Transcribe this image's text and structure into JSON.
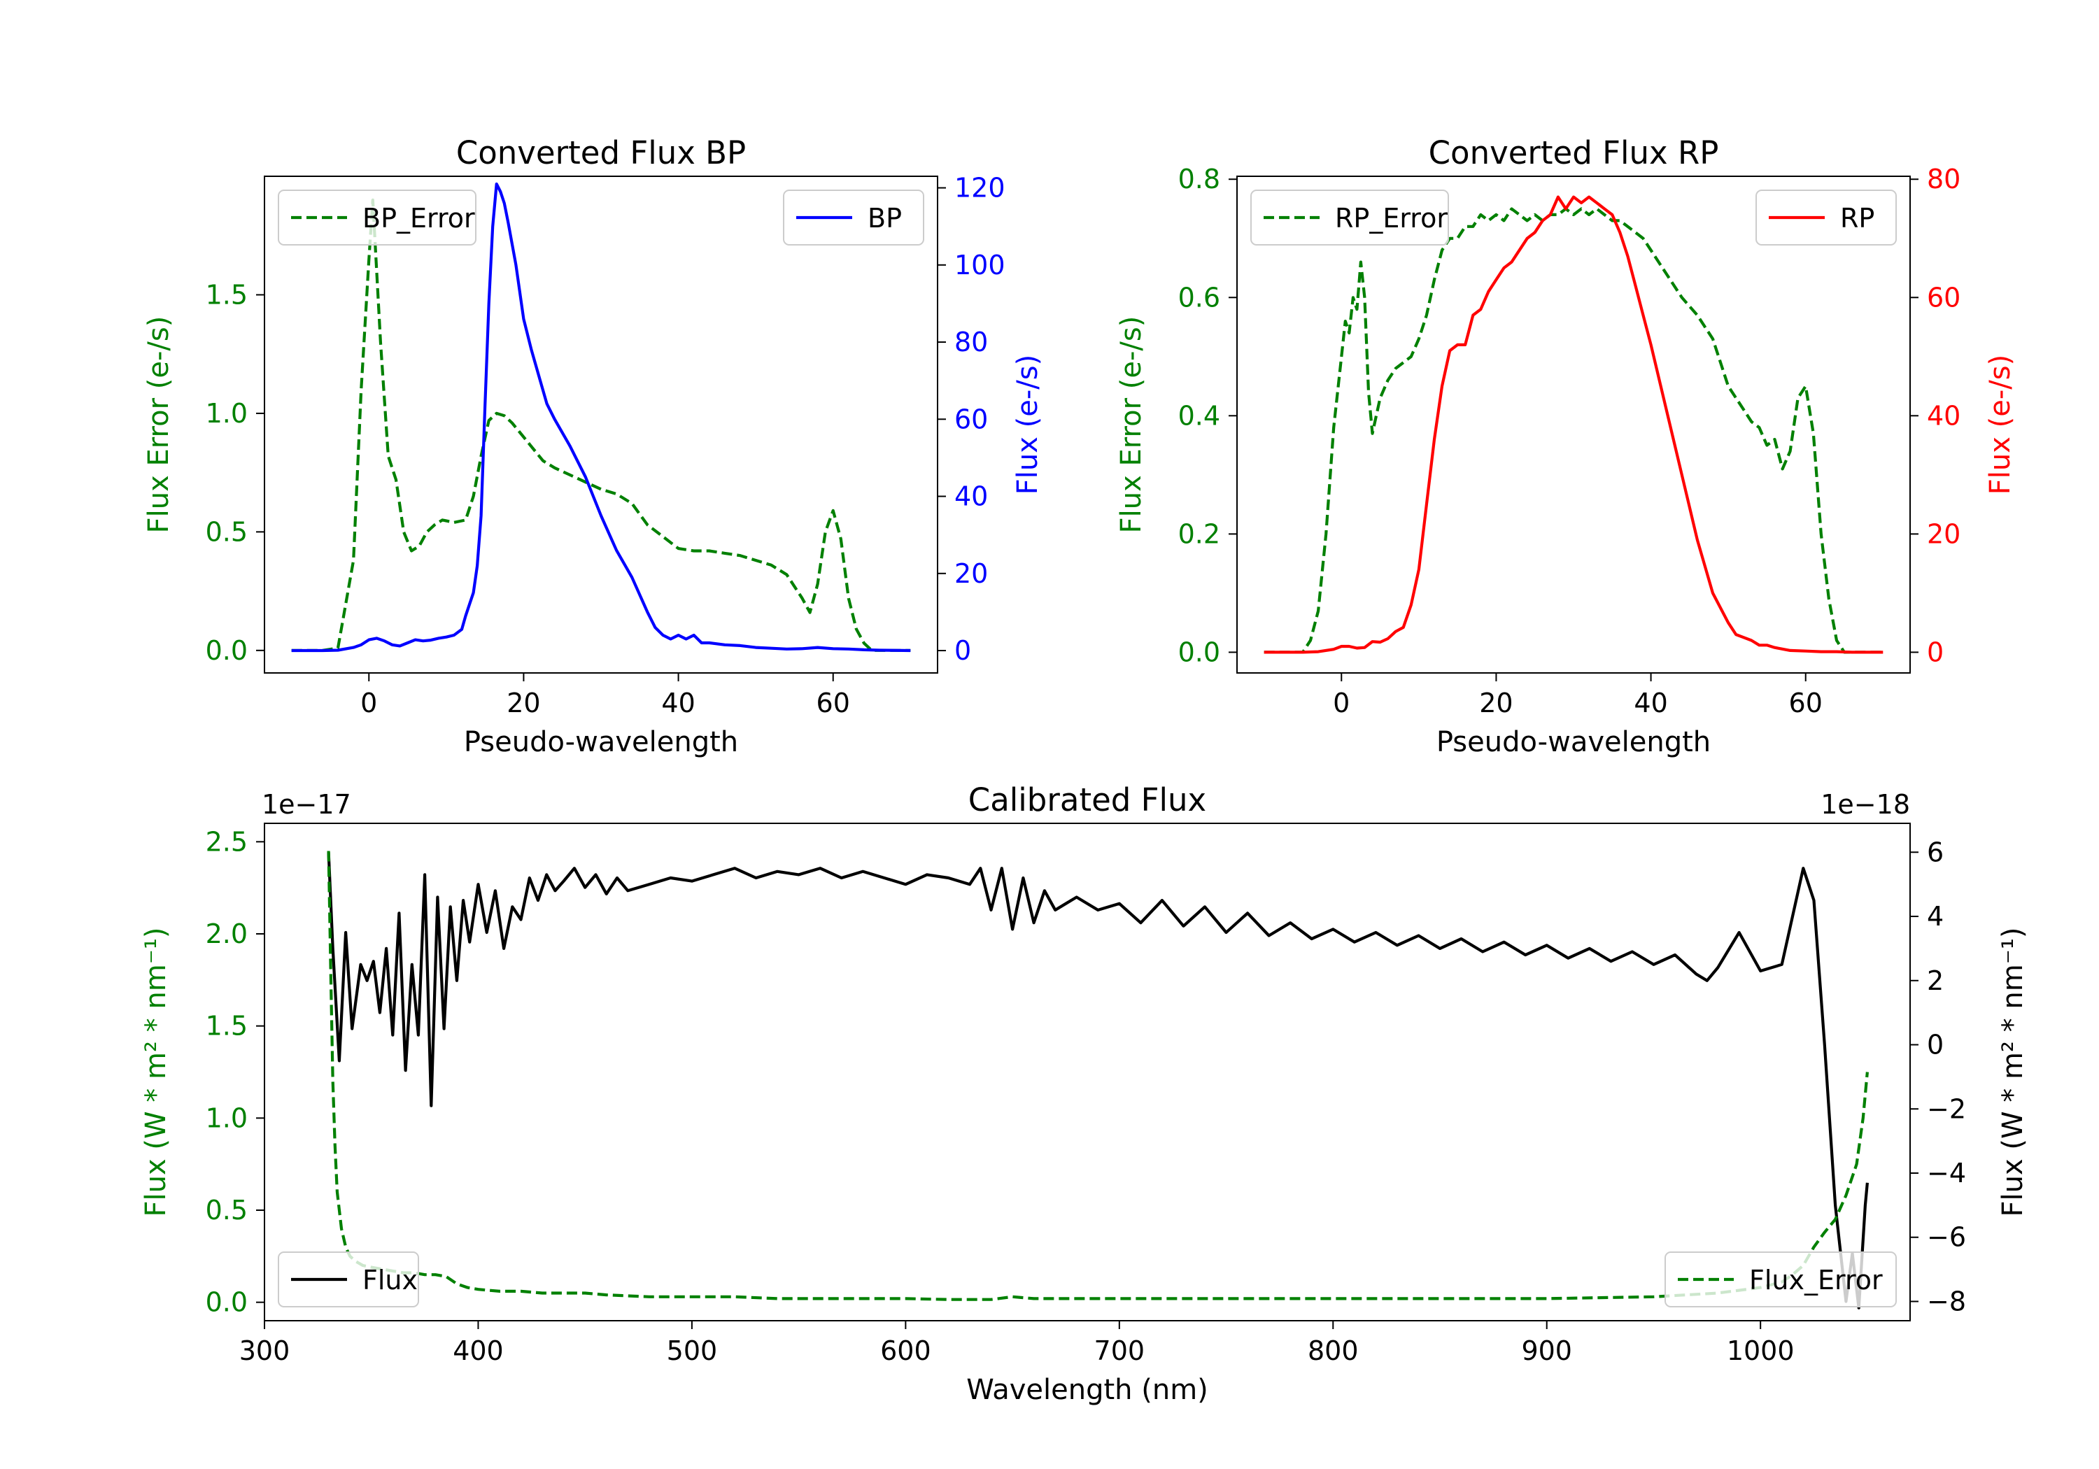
{
  "colors": {
    "error": "#008000",
    "bp": "#0000ff",
    "rp": "#ff0000",
    "flux": "#000000",
    "axis": "#000000"
  },
  "chart_data": [
    {
      "type": "line",
      "title": "Converted Flux BP",
      "xlabel": "Pseudo-wavelength",
      "ylabel_left": "Flux Error (e-/s)",
      "ylabel_right": "Flux (e-/s)",
      "xlim": [
        -13.5,
        73.5
      ],
      "ylim_left": [
        -0.095,
        2.0
      ],
      "ylim_right": [
        -5.8,
        123
      ],
      "xticks": [
        0,
        20,
        40,
        60
      ],
      "yticks_left": [
        0.0,
        0.5,
        1.0,
        1.5
      ],
      "yticks_right": [
        0,
        20,
        40,
        60,
        80,
        100,
        120
      ],
      "legend_left": {
        "label": "BP_Error",
        "position": "upper left"
      },
      "legend_right": {
        "label": "BP",
        "position": "upper right"
      },
      "series": [
        {
          "name": "BP_Error",
          "axis": "left",
          "style": "dashed",
          "x": [
            -10,
            -6,
            -4,
            -2,
            -1,
            0,
            0.5,
            1.5,
            2.5,
            3.5,
            4.5,
            5.5,
            6.5,
            7.5,
            8.5,
            9.5,
            11,
            12.5,
            13.5,
            14.5,
            15.5,
            16.5,
            17.5,
            18.5,
            19.5,
            20.5,
            21.5,
            22.5,
            24,
            26,
            28,
            30,
            32,
            34,
            36,
            38,
            40,
            42,
            44,
            46,
            48,
            50,
            52,
            54,
            55,
            56,
            57,
            58,
            59,
            60,
            61,
            62,
            63,
            64,
            65,
            66,
            68,
            70
          ],
          "y": [
            0,
            0,
            0.01,
            0.38,
            1.1,
            1.65,
            1.9,
            1.3,
            0.82,
            0.72,
            0.5,
            0.42,
            0.44,
            0.5,
            0.53,
            0.55,
            0.54,
            0.55,
            0.65,
            0.82,
            0.97,
            1.0,
            0.99,
            0.96,
            0.92,
            0.88,
            0.84,
            0.8,
            0.77,
            0.74,
            0.71,
            0.68,
            0.66,
            0.62,
            0.53,
            0.48,
            0.43,
            0.42,
            0.42,
            0.41,
            0.4,
            0.38,
            0.36,
            0.32,
            0.27,
            0.22,
            0.16,
            0.28,
            0.5,
            0.59,
            0.47,
            0.22,
            0.09,
            0.03,
            0.0,
            0.0,
            0.0,
            0.0
          ]
        },
        {
          "name": "BP",
          "axis": "right",
          "style": "solid",
          "x": [
            -10,
            -6,
            -4,
            -2,
            -1,
            0,
            1,
            2,
            3,
            4,
            5,
            6,
            7,
            8,
            9,
            10,
            11,
            12,
            12.5,
            13,
            13.5,
            14,
            14.5,
            15,
            15.5,
            16,
            16.5,
            17,
            17.5,
            18,
            19,
            20,
            21,
            22,
            23,
            24,
            26,
            28,
            30,
            32,
            34,
            36,
            37,
            38,
            39,
            40,
            41,
            42,
            43,
            44,
            46,
            48,
            50,
            52,
            54,
            56,
            58,
            60,
            62,
            64,
            66,
            70
          ],
          "y": [
            0,
            0,
            0.1,
            0.8,
            1.5,
            2.8,
            3.2,
            2.5,
            1.5,
            1.2,
            2.0,
            2.8,
            2.5,
            2.7,
            3.2,
            3.5,
            4.0,
            5.5,
            9,
            12,
            15,
            22,
            35,
            63,
            90,
            110,
            121,
            119,
            116,
            111,
            100,
            86,
            78,
            71,
            64,
            60,
            53,
            45,
            35,
            26,
            19,
            10,
            6,
            4,
            3,
            4,
            3,
            4,
            2,
            2,
            1.5,
            1.3,
            0.8,
            0.6,
            0.4,
            0.5,
            0.8,
            0.5,
            0.4,
            0.2,
            0.1,
            0.0
          ]
        }
      ]
    },
    {
      "type": "line",
      "title": "Converted Flux RP",
      "xlabel": "Pseudo-wavelength",
      "ylabel_left": "Flux Error (e-/s)",
      "ylabel_right": "Flux (e-/s)",
      "xlim": [
        -13.5,
        73.5
      ],
      "ylim_left": [
        -0.035,
        0.805
      ],
      "ylim_right": [
        -3.5,
        80.5
      ],
      "xticks": [
        0,
        20,
        40,
        60
      ],
      "yticks_left": [
        0.0,
        0.2,
        0.4,
        0.6,
        0.8
      ],
      "yticks_right": [
        0,
        20,
        40,
        60,
        80
      ],
      "legend_left": {
        "label": "RP_Error",
        "position": "upper left"
      },
      "legend_right": {
        "label": "RP",
        "position": "upper right"
      },
      "series": [
        {
          "name": "RP_Error",
          "axis": "left",
          "style": "dashed",
          "x": [
            -10,
            -5,
            -4,
            -3,
            -2,
            -1,
            0,
            0.5,
            1,
            1.5,
            2,
            2.5,
            3,
            3.5,
            4,
            4.5,
            5,
            6,
            7,
            8,
            9,
            10,
            11,
            12,
            13,
            14,
            15,
            16,
            17,
            18,
            19,
            20,
            21,
            22,
            23,
            24,
            25,
            26,
            27,
            28,
            29,
            30,
            31,
            32,
            33,
            34,
            35,
            36,
            37,
            38,
            39,
            40,
            42,
            44,
            46,
            48,
            50,
            52,
            53,
            54,
            55,
            56,
            57,
            58,
            59,
            60,
            61,
            62,
            63,
            64,
            65,
            66,
            68,
            70
          ],
          "y": [
            0,
            0,
            0.02,
            0.07,
            0.2,
            0.38,
            0.5,
            0.56,
            0.54,
            0.6,
            0.58,
            0.66,
            0.6,
            0.44,
            0.37,
            0.4,
            0.43,
            0.46,
            0.48,
            0.49,
            0.5,
            0.53,
            0.57,
            0.63,
            0.68,
            0.7,
            0.7,
            0.72,
            0.72,
            0.74,
            0.73,
            0.74,
            0.73,
            0.75,
            0.74,
            0.73,
            0.74,
            0.73,
            0.74,
            0.74,
            0.75,
            0.74,
            0.75,
            0.74,
            0.75,
            0.74,
            0.73,
            0.73,
            0.72,
            0.71,
            0.7,
            0.68,
            0.64,
            0.6,
            0.57,
            0.53,
            0.45,
            0.41,
            0.39,
            0.38,
            0.35,
            0.36,
            0.31,
            0.34,
            0.43,
            0.45,
            0.37,
            0.2,
            0.09,
            0.02,
            0.0,
            0.0,
            0.0,
            0.0
          ]
        },
        {
          "name": "RP",
          "axis": "right",
          "style": "solid",
          "x": [
            -10,
            -5,
            -3,
            -1,
            0,
            1,
            2,
            3,
            4,
            5,
            6,
            7,
            8,
            9,
            10,
            11,
            12,
            13,
            14,
            15,
            16,
            17,
            18,
            19,
            20,
            21,
            22,
            23,
            24,
            25,
            26,
            27,
            28,
            29,
            30,
            31,
            32,
            33,
            34,
            35,
            36,
            37,
            38,
            39,
            40,
            42,
            44,
            46,
            48,
            50,
            51,
            52,
            53,
            54,
            55,
            56,
            58,
            60,
            62,
            64,
            66,
            70
          ],
          "y": [
            0,
            0,
            0.1,
            0.5,
            1.0,
            1.0,
            0.7,
            0.8,
            1.8,
            1.7,
            2.3,
            3.5,
            4.2,
            8,
            14,
            25,
            36,
            45,
            51,
            52,
            52,
            57,
            58,
            61,
            63,
            65,
            66,
            68,
            70,
            71,
            73,
            74,
            77,
            75,
            77,
            76,
            77,
            76,
            75,
            74,
            71,
            67,
            62,
            57,
            52,
            41,
            30,
            19,
            10,
            5,
            3,
            2.5,
            2,
            1.2,
            1.2,
            0.8,
            0.3,
            0.2,
            0.1,
            0.1,
            0.0,
            0.0
          ]
        }
      ]
    },
    {
      "type": "line",
      "title": "Calibrated Flux",
      "xlabel": "Wavelength (nm)",
      "ylabel_left": "Flux (W * m² * nm⁻¹)",
      "ylabel_right": "Flux (W * m² * nm⁻¹)",
      "offset_left": "1e−17",
      "offset_right": "1e−18",
      "xlim": [
        300,
        1070
      ],
      "ylim_left": [
        -0.1,
        2.6
      ],
      "ylim_right": [
        -8.6,
        6.9
      ],
      "xticks": [
        300,
        400,
        500,
        600,
        700,
        800,
        900,
        1000
      ],
      "yticks_left": [
        0.0,
        0.5,
        1.0,
        1.5,
        2.0,
        2.5
      ],
      "yticks_right": [
        -8,
        -6,
        -4,
        -2,
        0,
        2,
        4,
        6
      ],
      "legend_left": {
        "label": "Flux",
        "position": "lower left"
      },
      "legend_right": {
        "label": "Flux_Error",
        "position": "lower right"
      },
      "series": [
        {
          "name": "Flux",
          "axis": "right",
          "style": "solid",
          "x": [
            330,
            332,
            335,
            338,
            341,
            345,
            348,
            351,
            354,
            357,
            360,
            363,
            366,
            369,
            372,
            375,
            378,
            381,
            384,
            387,
            390,
            393,
            396,
            400,
            404,
            408,
            412,
            416,
            420,
            424,
            428,
            432,
            436,
            440,
            445,
            450,
            455,
            460,
            465,
            470,
            480,
            490,
            500,
            510,
            520,
            530,
            540,
            550,
            560,
            570,
            580,
            590,
            600,
            610,
            620,
            630,
            635,
            640,
            645,
            650,
            655,
            660,
            665,
            670,
            680,
            690,
            700,
            710,
            720,
            730,
            740,
            750,
            760,
            770,
            780,
            790,
            800,
            810,
            820,
            830,
            840,
            850,
            860,
            870,
            880,
            890,
            900,
            910,
            920,
            930,
            940,
            950,
            960,
            970,
            975,
            980,
            990,
            1000,
            1010,
            1015,
            1020,
            1025,
            1030,
            1035,
            1040,
            1043,
            1046,
            1049,
            1050
          ],
          "y": [
            6.0,
            3.0,
            -0.5,
            3.5,
            0.5,
            2.5,
            2.0,
            2.6,
            1.0,
            3.0,
            0.3,
            4.1,
            -0.8,
            2.5,
            0.3,
            5.3,
            -1.9,
            4.6,
            0.5,
            4.3,
            2.0,
            4.5,
            3.2,
            5.0,
            3.5,
            4.8,
            3.0,
            4.3,
            3.9,
            5.2,
            4.5,
            5.3,
            4.8,
            5.1,
            5.5,
            4.9,
            5.3,
            4.7,
            5.2,
            4.8,
            5.0,
            5.2,
            5.1,
            5.3,
            5.5,
            5.2,
            5.4,
            5.3,
            5.5,
            5.2,
            5.4,
            5.2,
            5.0,
            5.3,
            5.2,
            5.0,
            5.5,
            4.2,
            5.5,
            3.6,
            5.2,
            3.8,
            4.8,
            4.2,
            4.6,
            4.2,
            4.4,
            3.8,
            4.5,
            3.7,
            4.3,
            3.5,
            4.1,
            3.4,
            3.8,
            3.3,
            3.6,
            3.2,
            3.5,
            3.1,
            3.4,
            3.0,
            3.3,
            2.9,
            3.2,
            2.8,
            3.1,
            2.7,
            3.0,
            2.6,
            2.9,
            2.5,
            2.8,
            2.2,
            2.0,
            2.4,
            3.5,
            2.3,
            2.5,
            4.0,
            5.5,
            4.5,
            0.0,
            -5.0,
            -8.0,
            -6.5,
            -8.2,
            -5.0,
            -4.3
          ]
        },
        {
          "name": "Flux_Error",
          "axis": "left",
          "style": "dashed",
          "x": [
            330,
            331,
            332,
            333,
            334,
            336,
            338,
            340,
            343,
            346,
            350,
            355,
            360,
            365,
            370,
            375,
            380,
            385,
            390,
            395,
            400,
            410,
            420,
            430,
            440,
            450,
            460,
            480,
            500,
            520,
            540,
            560,
            580,
            600,
            620,
            640,
            650,
            660,
            700,
            750,
            800,
            850,
            900,
            950,
            980,
            1000,
            1010,
            1015,
            1020,
            1025,
            1030,
            1035,
            1040,
            1045,
            1048,
            1050
          ],
          "y": [
            2.45,
            1.8,
            1.2,
            0.85,
            0.6,
            0.4,
            0.3,
            0.25,
            0.22,
            0.2,
            0.19,
            0.18,
            0.17,
            0.16,
            0.16,
            0.15,
            0.15,
            0.14,
            0.1,
            0.08,
            0.07,
            0.06,
            0.06,
            0.05,
            0.05,
            0.05,
            0.04,
            0.03,
            0.03,
            0.03,
            0.02,
            0.02,
            0.02,
            0.02,
            0.015,
            0.015,
            0.03,
            0.02,
            0.02,
            0.02,
            0.02,
            0.02,
            0.02,
            0.03,
            0.05,
            0.08,
            0.11,
            0.15,
            0.2,
            0.3,
            0.38,
            0.45,
            0.58,
            0.75,
            1.0,
            1.25
          ]
        }
      ]
    }
  ]
}
